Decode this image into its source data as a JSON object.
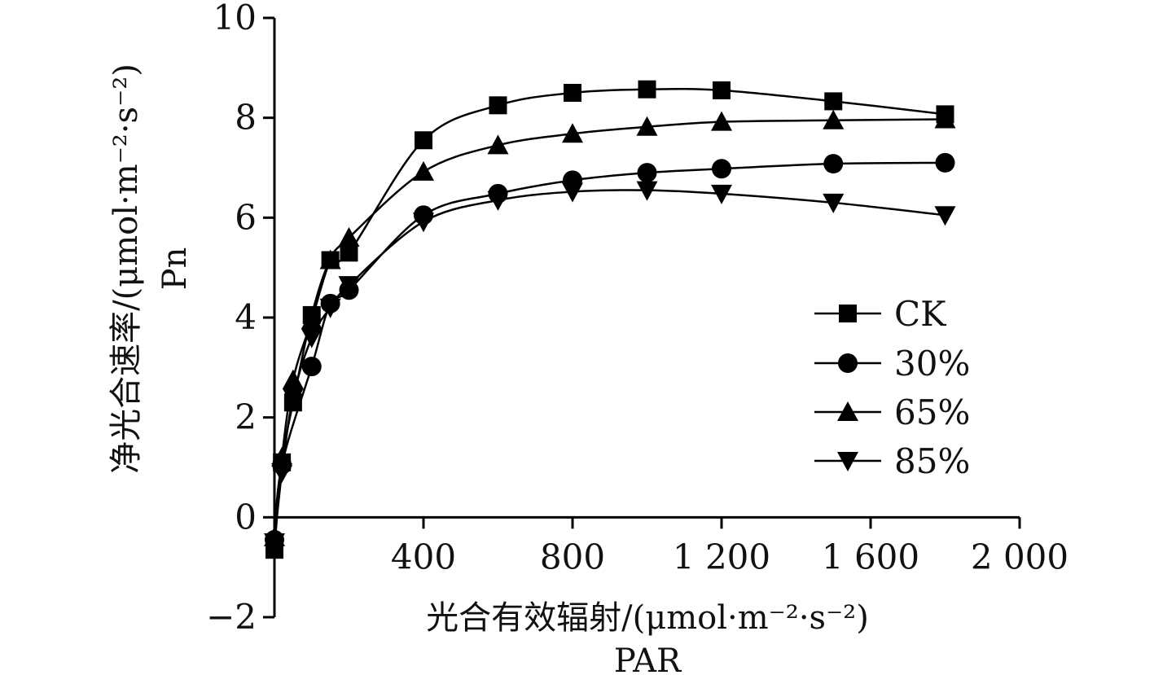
{
  "chart_data": {
    "type": "line",
    "xlabel_main": "光合有效辐射/(μmol·m⁻²·s⁻²)",
    "xlabel_sub": "PAR",
    "ylabel_main": "净光合速率/(μmol·m⁻²·s⁻²)",
    "ylabel_sub": "Pn",
    "xlim": [
      0,
      2000
    ],
    "ylim": [
      -2,
      10
    ],
    "xticks": [
      400,
      800,
      1200,
      1600,
      2000
    ],
    "xtick_labels": [
      "400",
      "800",
      "1 200",
      "1 600",
      "2 000"
    ],
    "yticks": [
      -2,
      0,
      2,
      4,
      6,
      8,
      10
    ],
    "ytick_labels": [
      "−2",
      "0",
      "2",
      "4",
      "6",
      "8",
      "10"
    ],
    "grid": false,
    "legend_position": "right",
    "series": [
      {
        "name": "CK",
        "marker": "square",
        "x": [
          0,
          20,
          50,
          100,
          150,
          200,
          400,
          600,
          800,
          1000,
          1200,
          1500,
          1800
        ],
        "y": [
          -0.65,
          1.1,
          2.3,
          4.05,
          5.15,
          5.3,
          7.55,
          8.25,
          8.5,
          8.57,
          8.55,
          8.33,
          8.07
        ]
      },
      {
        "name": "30%",
        "marker": "circle",
        "x": [
          0,
          20,
          100,
          150,
          200,
          400,
          600,
          800,
          1000,
          1200,
          1500,
          1800
        ],
        "y": [
          -0.45,
          1.05,
          3.02,
          4.28,
          4.55,
          6.05,
          6.48,
          6.75,
          6.9,
          6.98,
          7.08,
          7.1
        ]
      },
      {
        "name": "65%",
        "marker": "triangle-up",
        "x": [
          0,
          20,
          50,
          100,
          150,
          200,
          400,
          600,
          800,
          1000,
          1200,
          1500,
          1800
        ],
        "y": [
          -0.4,
          1.2,
          2.75,
          3.95,
          5.15,
          5.6,
          6.92,
          7.45,
          7.68,
          7.82,
          7.92,
          7.95,
          7.97
        ]
      },
      {
        "name": "85%",
        "marker": "triangle-down",
        "x": [
          0,
          20,
          50,
          100,
          150,
          200,
          400,
          600,
          800,
          1000,
          1200,
          1500,
          1800
        ],
        "y": [
          -0.5,
          0.9,
          2.4,
          3.6,
          4.2,
          4.65,
          5.92,
          6.35,
          6.52,
          6.55,
          6.48,
          6.3,
          6.05
        ]
      }
    ]
  }
}
